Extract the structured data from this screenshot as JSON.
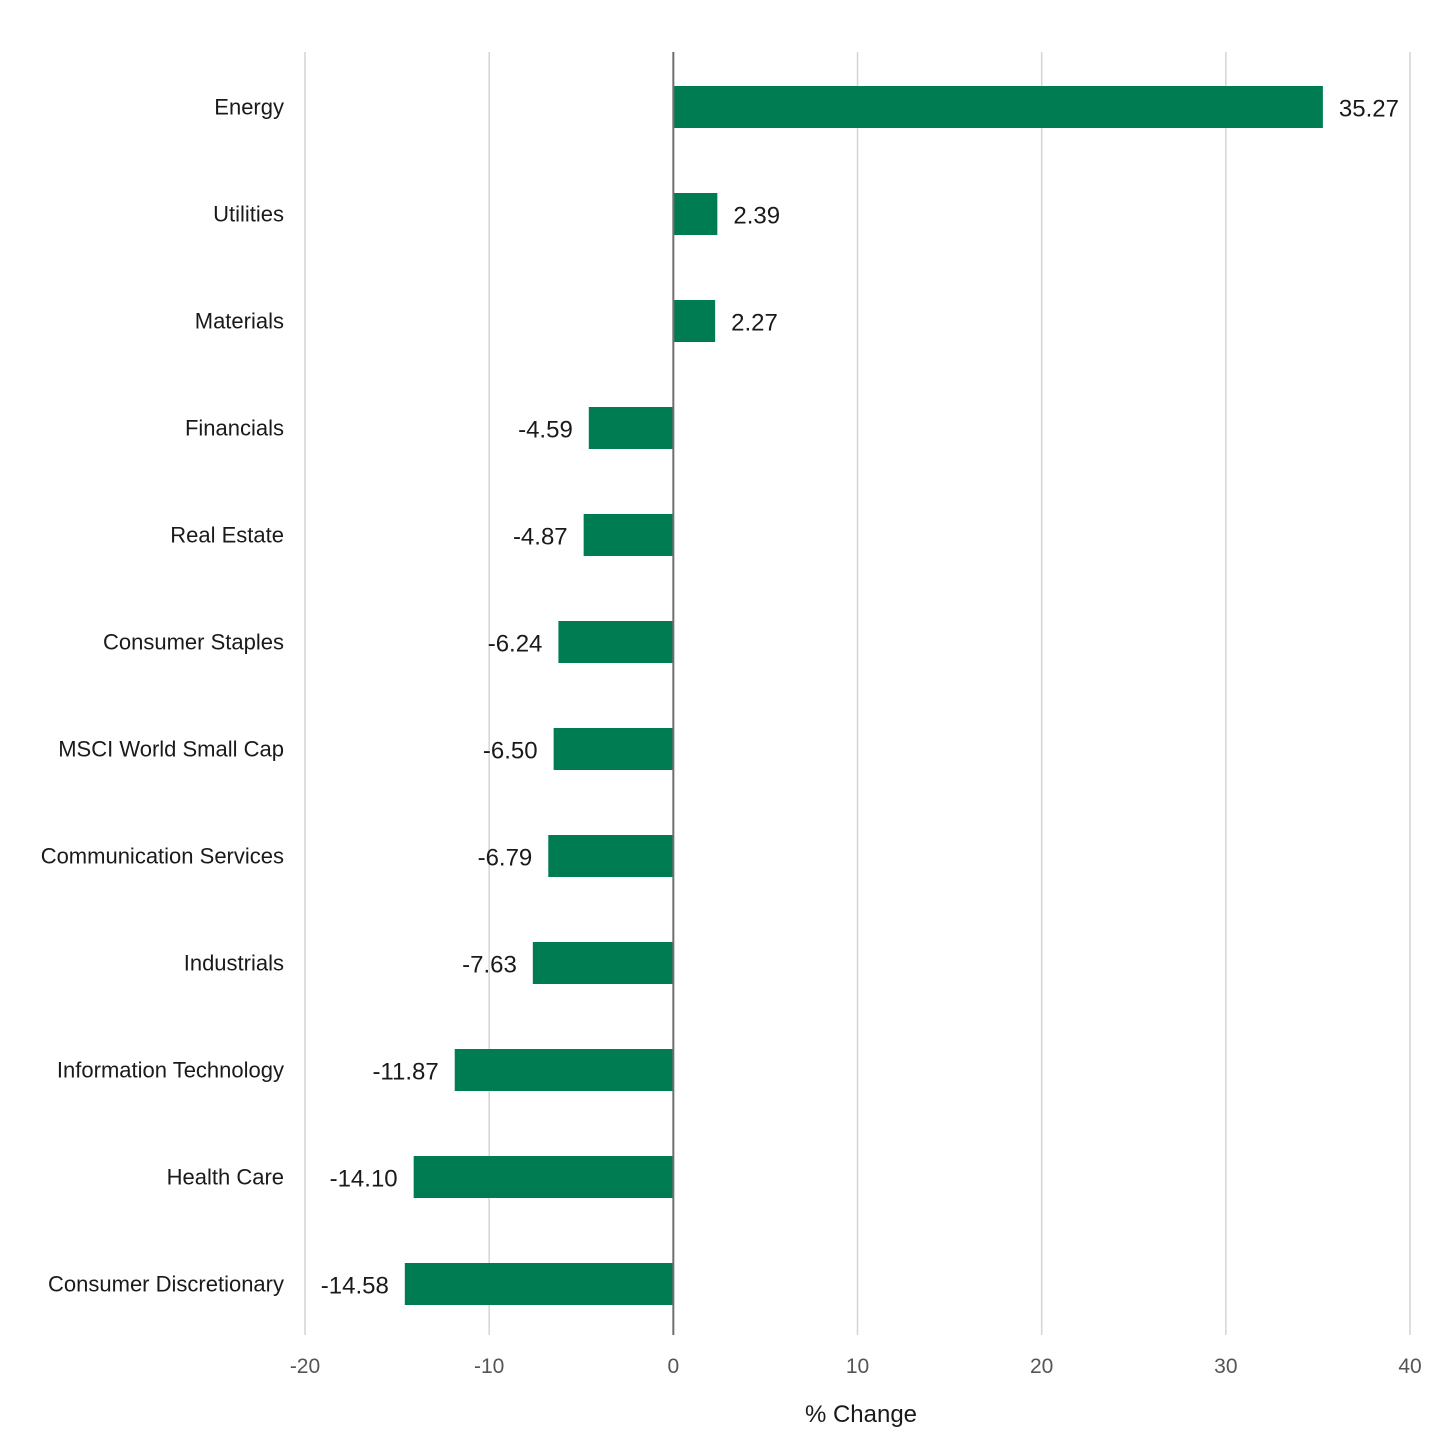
{
  "chart_data": {
    "type": "bar",
    "orientation": "horizontal",
    "categories": [
      "Energy",
      "Utilities",
      "Materials",
      "Financials",
      "Real Estate",
      "Consumer Staples",
      "MSCI World Small Cap",
      "Communication Services",
      "Industrials",
      "Information Technology",
      "Health Care",
      "Consumer Discretionary"
    ],
    "values": [
      35.27,
      2.39,
      2.27,
      -4.59,
      -4.87,
      -6.24,
      -6.5,
      -6.79,
      -7.63,
      -11.87,
      -14.1,
      -14.58
    ],
    "value_labels": [
      "35.27",
      "2.39",
      "2.27",
      "-4.59",
      "-4.87",
      "-6.24",
      "-6.50",
      "-6.79",
      "-7.63",
      "-11.87",
      "-14.10",
      "-14.58"
    ],
    "xlabel": "% Change",
    "ylabel": "",
    "xlim": [
      -20,
      40
    ],
    "ticks": [
      -20,
      -10,
      0,
      10,
      20,
      30,
      40
    ],
    "tick_labels": [
      "-20",
      "-10",
      "0",
      "10",
      "20",
      "30",
      "40"
    ],
    "grid": "vertical",
    "legend": "none",
    "bar_color": "#007c53"
  }
}
